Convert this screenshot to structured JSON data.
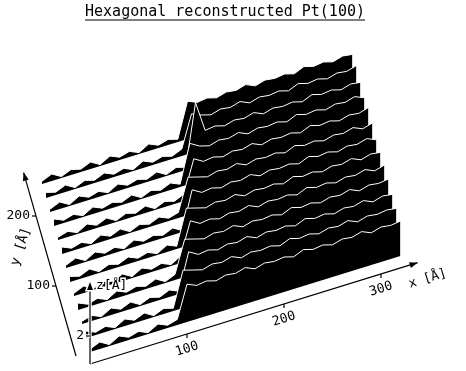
{
  "chart_data": {
    "type": "surface",
    "title": "Hexagonal reconstructed Pt(100)",
    "x_label": "x [Å]",
    "y_label": "y [Å]",
    "z_label": "z[Å]",
    "color": "#000000",
    "xlim": [
      0,
      320
    ],
    "ylim": [
      0,
      240
    ],
    "zlim": [
      0,
      5
    ],
    "xticks": [
      100,
      200,
      300
    ],
    "yticks": [
      100,
      200
    ],
    "zticks": [
      2
    ],
    "x": [
      0,
      10,
      20,
      30,
      40,
      50,
      60,
      70,
      80,
      90,
      100,
      110,
      120,
      130,
      140,
      150,
      160,
      170,
      180,
      190,
      200,
      210,
      220,
      230,
      240,
      250,
      260,
      270,
      280,
      290,
      300,
      310,
      320
    ],
    "y": [
      0,
      20,
      40,
      60,
      80,
      100,
      120,
      140,
      160,
      180,
      200,
      220,
      240
    ],
    "z": [
      [
        0.2,
        0.5,
        0.1,
        0.5,
        0.2,
        0.4,
        0.1,
        0.5,
        0.2,
        0.4,
        2.7,
        2.4,
        2.5,
        2.3,
        2.5,
        2.4,
        2.6,
        2.3,
        2.5,
        2.4,
        2.5,
        2.3,
        2.6,
        2.4,
        2.5,
        2.3,
        2.5,
        2.4,
        2.6,
        2.3,
        2.5,
        2.4,
        2.5
      ],
      [
        0.5,
        0.2,
        0.4,
        0.1,
        0.5,
        0.2,
        0.5,
        0.1,
        0.4,
        0.2,
        2.7,
        2.5,
        2.3,
        2.5,
        2.4,
        2.6,
        2.3,
        2.5,
        2.4,
        2.5,
        2.3,
        2.6,
        2.4,
        2.5,
        2.3,
        2.5,
        2.4,
        2.6,
        2.3,
        2.5,
        2.4,
        2.5,
        2.4
      ],
      [
        0.2,
        0.4,
        0.1,
        0.5,
        0.2,
        0.5,
        0.1,
        0.4,
        0.2,
        0.5,
        0.2,
        2.8,
        2.4,
        2.5,
        2.3,
        2.5,
        2.4,
        2.6,
        2.3,
        2.5,
        2.4,
        2.5,
        2.3,
        2.6,
        2.4,
        2.5,
        2.3,
        2.5,
        2.4,
        2.6,
        2.3,
        2.5,
        2.4
      ],
      [
        0.5,
        0.2,
        0.4,
        0.1,
        0.5,
        0.2,
        0.4,
        0.2,
        0.5,
        0.1,
        0.4,
        2.7,
        2.5,
        2.3,
        2.5,
        2.4,
        2.6,
        2.3,
        2.5,
        2.4,
        2.5,
        2.3,
        2.6,
        2.4,
        2.5,
        2.3,
        2.5,
        2.4,
        2.6,
        2.3,
        2.5,
        2.4,
        2.5
      ],
      [
        0.2,
        0.5,
        0.1,
        0.4,
        0.2,
        0.5,
        0.1,
        0.5,
        0.2,
        0.4,
        0.1,
        0.5,
        2.8,
        2.4,
        2.5,
        2.3,
        2.5,
        2.4,
        2.6,
        2.3,
        2.5,
        2.4,
        2.5,
        2.3,
        2.6,
        2.4,
        2.5,
        2.3,
        2.5,
        2.4,
        2.6,
        2.3,
        2.5
      ],
      [
        0.4,
        0.2,
        0.5,
        0.1,
        0.4,
        0.2,
        0.5,
        0.2,
        0.4,
        0.1,
        0.5,
        0.2,
        2.7,
        2.5,
        2.3,
        2.5,
        2.4,
        2.6,
        2.3,
        2.5,
        2.4,
        2.5,
        2.3,
        2.6,
        2.4,
        2.5,
        2.3,
        2.5,
        2.4,
        2.6,
        2.3,
        2.5,
        2.4
      ],
      [
        0.2,
        0.5,
        0.1,
        0.5,
        0.2,
        0.4,
        0.1,
        0.5,
        0.2,
        0.4,
        0.2,
        0.5,
        0.1,
        2.8,
        2.4,
        2.5,
        2.3,
        2.5,
        2.4,
        2.6,
        2.3,
        2.5,
        2.4,
        2.5,
        2.3,
        2.6,
        2.4,
        2.5,
        2.3,
        2.5,
        2.4,
        2.6,
        2.3
      ],
      [
        0.5,
        0.2,
        0.4,
        0.1,
        0.5,
        0.2,
        0.5,
        0.1,
        0.4,
        0.2,
        0.5,
        0.2,
        0.4,
        2.7,
        2.5,
        2.3,
        2.5,
        2.4,
        2.6,
        2.3,
        2.5,
        2.4,
        2.5,
        2.3,
        2.6,
        2.4,
        2.5,
        2.3,
        2.5,
        2.4,
        2.6,
        2.3,
        2.5
      ],
      [
        0.2,
        0.4,
        0.1,
        0.5,
        0.2,
        0.5,
        0.1,
        0.4,
        0.2,
        0.5,
        0.1,
        0.4,
        0.2,
        0.5,
        2.8,
        2.4,
        2.5,
        2.3,
        2.5,
        2.4,
        2.6,
        2.3,
        2.5,
        2.4,
        2.5,
        2.3,
        2.6,
        2.4,
        2.5,
        2.3,
        2.5,
        2.4,
        2.6
      ],
      [
        0.5,
        0.2,
        0.4,
        0.1,
        0.5,
        0.2,
        0.4,
        0.2,
        0.5,
        0.1,
        0.4,
        0.2,
        0.5,
        0.2,
        2.9,
        2.5,
        2.3,
        2.5,
        2.4,
        2.6,
        2.3,
        2.5,
        2.4,
        2.5,
        2.3,
        2.6,
        2.4,
        2.5,
        2.3,
        2.5,
        2.4,
        2.6,
        2.3
      ],
      [
        0.2,
        0.5,
        0.1,
        0.5,
        0.2,
        0.4,
        0.1,
        0.5,
        0.2,
        0.4,
        0.2,
        0.5,
        0.1,
        0.4,
        0.2,
        4.6,
        2.4,
        2.5,
        2.3,
        2.5,
        2.4,
        2.6,
        2.3,
        2.5,
        2.4,
        2.5,
        2.3,
        2.6,
        2.4,
        2.5,
        2.3,
        2.5,
        2.4
      ],
      [
        0.4,
        0.2,
        0.5,
        0.1,
        0.4,
        0.2,
        0.5,
        0.2,
        0.4,
        0.1,
        0.5,
        0.2,
        0.4,
        0.2,
        0.5,
        2.8,
        2.5,
        2.3,
        2.5,
        2.4,
        2.6,
        2.3,
        2.5,
        2.4,
        2.5,
        2.3,
        2.6,
        2.4,
        2.5,
        2.3,
        2.5,
        2.4,
        2.6
      ],
      [
        0.2,
        0.5,
        0.1,
        0.4,
        0.2,
        0.5,
        0.1,
        0.5,
        0.2,
        0.4,
        0.1,
        0.5,
        0.2,
        0.4,
        0.2,
        2.7,
        2.4,
        2.5,
        2.3,
        2.5,
        2.4,
        2.6,
        2.3,
        2.5,
        2.4,
        2.5,
        2.3,
        2.6,
        2.4,
        2.5,
        2.3,
        2.5,
        2.4
      ]
    ]
  }
}
